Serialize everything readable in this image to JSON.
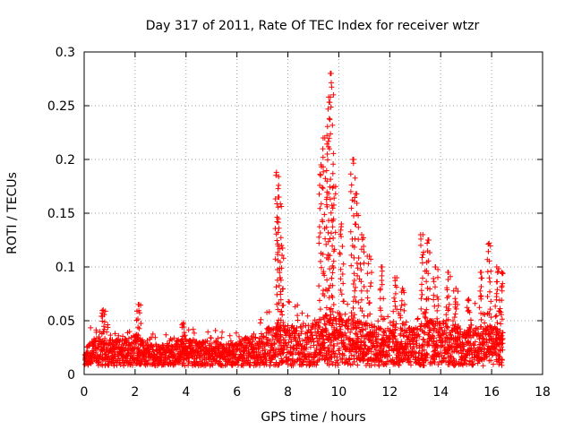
{
  "chart_data": {
    "type": "scatter",
    "title": "Day 317 of 2011, Rate Of TEC Index for receiver wtzr",
    "xlabel": "GPS time / hours",
    "ylabel": "ROTI / TECUs",
    "xlim": [
      0,
      18
    ],
    "ylim": [
      0,
      0.3
    ],
    "x_ticks": [
      "0",
      "2",
      "4",
      "6",
      "8",
      "10",
      "12",
      "14",
      "16",
      "18"
    ],
    "y_ticks": [
      "0",
      "0.05",
      "0.1",
      "0.15",
      "0.2",
      "0.25",
      "0.3"
    ],
    "grid": true,
    "marker": "+",
    "color": "#ff0000",
    "series": [
      {
        "name": "ROTI",
        "description": "dense scatter of ROTI samples from 0 to ~16.5 h; baseline ~0.01-0.04 TECU/min with enhanced activity 7.3-16.5 h",
        "peaks": [
          {
            "x": 0.75,
            "y": 0.06
          },
          {
            "x": 2.15,
            "y": 0.065
          },
          {
            "x": 3.9,
            "y": 0.048
          },
          {
            "x": 7.55,
            "y": 0.188
          },
          {
            "x": 7.65,
            "y": 0.165
          },
          {
            "x": 7.75,
            "y": 0.12
          },
          {
            "x": 9.3,
            "y": 0.195
          },
          {
            "x": 9.45,
            "y": 0.22
          },
          {
            "x": 9.6,
            "y": 0.258
          },
          {
            "x": 9.7,
            "y": 0.28
          },
          {
            "x": 9.8,
            "y": 0.175
          },
          {
            "x": 10.1,
            "y": 0.14
          },
          {
            "x": 10.55,
            "y": 0.2
          },
          {
            "x": 10.7,
            "y": 0.168
          },
          {
            "x": 10.9,
            "y": 0.13
          },
          {
            "x": 11.2,
            "y": 0.11
          },
          {
            "x": 11.7,
            "y": 0.1
          },
          {
            "x": 12.2,
            "y": 0.09
          },
          {
            "x": 12.5,
            "y": 0.08
          },
          {
            "x": 13.3,
            "y": 0.13
          },
          {
            "x": 13.5,
            "y": 0.125
          },
          {
            "x": 13.8,
            "y": 0.1
          },
          {
            "x": 14.3,
            "y": 0.095
          },
          {
            "x": 14.6,
            "y": 0.08
          },
          {
            "x": 15.1,
            "y": 0.07
          },
          {
            "x": 15.6,
            "y": 0.095
          },
          {
            "x": 15.9,
            "y": 0.122
          },
          {
            "x": 16.2,
            "y": 0.1
          },
          {
            "x": 16.4,
            "y": 0.095
          }
        ],
        "baseline": [
          {
            "x": 0.0,
            "y": 0.012
          },
          {
            "x": 0.5,
            "y": 0.028
          },
          {
            "x": 1.0,
            "y": 0.022
          },
          {
            "x": 1.5,
            "y": 0.02
          },
          {
            "x": 2.0,
            "y": 0.024
          },
          {
            "x": 2.5,
            "y": 0.018
          },
          {
            "x": 3.0,
            "y": 0.016
          },
          {
            "x": 3.5,
            "y": 0.02
          },
          {
            "x": 4.0,
            "y": 0.022
          },
          {
            "x": 4.5,
            "y": 0.018
          },
          {
            "x": 5.0,
            "y": 0.02
          },
          {
            "x": 5.5,
            "y": 0.017
          },
          {
            "x": 6.0,
            "y": 0.02
          },
          {
            "x": 6.5,
            "y": 0.022
          },
          {
            "x": 7.0,
            "y": 0.026
          },
          {
            "x": 7.5,
            "y": 0.034
          },
          {
            "x": 8.0,
            "y": 0.032
          },
          {
            "x": 8.5,
            "y": 0.03
          },
          {
            "x": 9.0,
            "y": 0.034
          },
          {
            "x": 9.5,
            "y": 0.04
          },
          {
            "x": 10.0,
            "y": 0.036
          },
          {
            "x": 10.5,
            "y": 0.038
          },
          {
            "x": 11.0,
            "y": 0.034
          },
          {
            "x": 11.5,
            "y": 0.03
          },
          {
            "x": 12.0,
            "y": 0.028
          },
          {
            "x": 12.5,
            "y": 0.03
          },
          {
            "x": 13.0,
            "y": 0.03
          },
          {
            "x": 13.5,
            "y": 0.036
          },
          {
            "x": 14.0,
            "y": 0.034
          },
          {
            "x": 14.5,
            "y": 0.032
          },
          {
            "x": 15.0,
            "y": 0.03
          },
          {
            "x": 15.5,
            "y": 0.03
          },
          {
            "x": 16.0,
            "y": 0.032
          },
          {
            "x": 16.5,
            "y": 0.025
          }
        ]
      }
    ]
  }
}
